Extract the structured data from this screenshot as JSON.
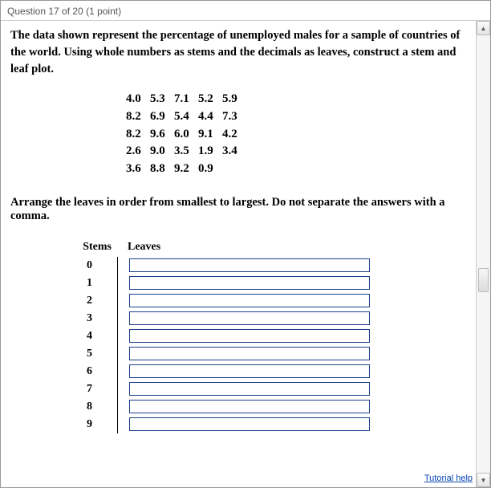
{
  "header": {
    "title": "Question 17 of 20 (1 point)"
  },
  "prompt": "The data shown represent the percentage of unemployed males for a sample of countries of the world. Using whole numbers as stems and the decimals as leaves, construct a stem and leaf plot.",
  "data_rows": [
    "4.0   5.3   7.1   5.2   5.9",
    "8.2   6.9   5.4   4.4   7.3",
    "8.2   9.6   6.0   9.1   4.2",
    "2.6   9.0   3.5   1.9   3.4",
    "3.6   8.8   9.2   0.9"
  ],
  "instruction": "Arrange the leaves in order from smallest to largest. Do not separate the answers with a comma.",
  "stemleaf": {
    "stems_header": "Stems",
    "leaves_header": "Leaves",
    "stems": [
      "0",
      "1",
      "2",
      "3",
      "4",
      "5",
      "6",
      "7",
      "8",
      "9"
    ]
  },
  "footer": {
    "tutorial_link": "Tutorial help"
  },
  "colors": {
    "input_border": "#1a3f8b",
    "link": "#0645ad",
    "header_text": "#555555"
  }
}
